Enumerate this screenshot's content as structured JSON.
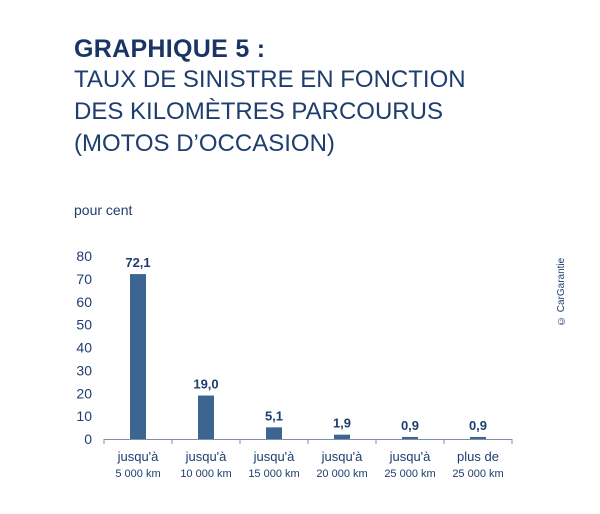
{
  "title": {
    "main": "GRAPHIQUE 5 :",
    "lines": [
      "TAUX DE SINISTRE EN FONCTION",
      "DES KILOMÈTRES PARCOURUS",
      "(MOTOS D’OCCASION)"
    ]
  },
  "unit_label": "pour cent",
  "copyright": "© CarGarantie",
  "colors": {
    "bar": "#3d6591",
    "text": "#1f3d6e",
    "axis": "#7f8fa8"
  },
  "chart_data": {
    "type": "bar",
    "title": "TAUX DE SINISTRE EN FONCTION DES KILOMÈTRES PARCOURUS (MOTOS D’OCCASION)",
    "ylabel": "pour cent",
    "ylim": [
      0,
      80
    ],
    "yticks": [
      "0",
      "10",
      "20",
      "30",
      "40",
      "50",
      "60",
      "70",
      "80"
    ],
    "grid": false,
    "categories": [
      [
        "jusqu'à",
        "5 000 km"
      ],
      [
        "jusqu'à",
        "10 000 km"
      ],
      [
        "jusqu'à",
        "15 000 km"
      ],
      [
        "jusqu'à",
        "20 000 km"
      ],
      [
        "jusqu'à",
        "25 000 km"
      ],
      [
        "plus de",
        "25 000 km"
      ]
    ],
    "values": [
      72.1,
      19.0,
      5.1,
      1.9,
      0.9,
      0.9
    ],
    "value_labels": [
      "72,1",
      "19,0",
      "5,1",
      "1,9",
      "0,9",
      "0,9"
    ]
  }
}
